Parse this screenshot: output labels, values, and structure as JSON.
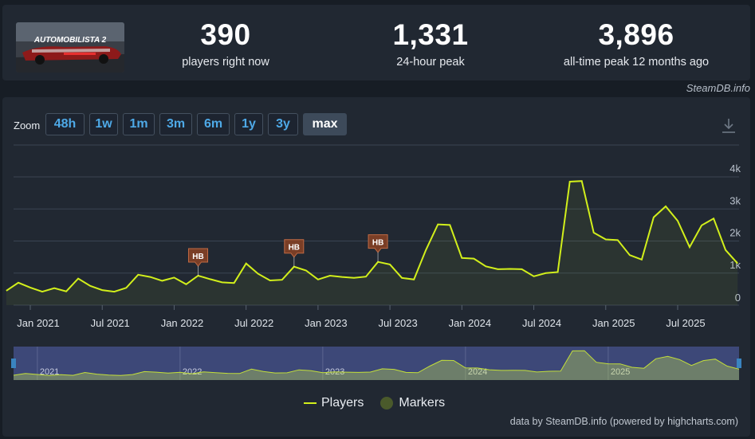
{
  "game": {
    "thumbnail_text": "AUTOMOBILISTA 2"
  },
  "stats": [
    {
      "value": "390",
      "label": "players right now"
    },
    {
      "value": "1,331",
      "label": "24-hour peak"
    },
    {
      "value": "3,896",
      "label": "all-time peak 12 months ago"
    }
  ],
  "brand": "SteamDB.info",
  "zoom": {
    "label": "Zoom",
    "buttons": [
      "48h",
      "1w",
      "1m",
      "3m",
      "6m",
      "1y",
      "3y",
      "max"
    ],
    "active": "max"
  },
  "legend": {
    "players": "Players",
    "markers": "Markers"
  },
  "credit": "data by SteamDB.info (powered by highcharts.com)",
  "colors": {
    "line": "#d2ef1b",
    "marker": "#7a3e26",
    "legend_marker": "#4a5a2b",
    "active_zoom": "#3d4a5a",
    "link": "#4ea9e7"
  },
  "chart_data": {
    "type": "line",
    "title": "",
    "xlabel": "",
    "ylabel": "",
    "ylim": [
      0,
      4000
    ],
    "y_ticks": [
      "0",
      "1k",
      "2k",
      "3k",
      "4k"
    ],
    "x_ticks": [
      "Jan 2021",
      "Jul 2021",
      "Jan 2022",
      "Jul 2022",
      "Jan 2023",
      "Jul 2023",
      "Jan 2024",
      "Jul 2024",
      "Jan 2025",
      "Jul 2025"
    ],
    "navigator_ticks": [
      "2021",
      "2022",
      "2023",
      "2024",
      "2025"
    ],
    "series": [
      {
        "name": "Players",
        "x": [
          "2020-11",
          "2020-12",
          "2021-01",
          "2021-02",
          "2021-03",
          "2021-04",
          "2021-05",
          "2021-06",
          "2021-07",
          "2021-08",
          "2021-09",
          "2021-10",
          "2021-11",
          "2021-12",
          "2022-01",
          "2022-02",
          "2022-03",
          "2022-04",
          "2022-05",
          "2022-06",
          "2022-07",
          "2022-08",
          "2022-09",
          "2022-10",
          "2022-11",
          "2022-12",
          "2023-01",
          "2023-02",
          "2023-03",
          "2023-04",
          "2023-05",
          "2023-06",
          "2023-07",
          "2023-08",
          "2023-09",
          "2023-10",
          "2023-11",
          "2023-12",
          "2024-01",
          "2024-02",
          "2024-03",
          "2024-04",
          "2024-05",
          "2024-06",
          "2024-07",
          "2024-08",
          "2024-09",
          "2024-10",
          "2024-11",
          "2024-12",
          "2025-01",
          "2025-02",
          "2025-03",
          "2025-04",
          "2025-05",
          "2025-06",
          "2025-07",
          "2025-08",
          "2025-09",
          "2025-10",
          "2025-11",
          "2025-12"
        ],
        "values": [
          450,
          700,
          550,
          420,
          530,
          430,
          830,
          600,
          470,
          420,
          540,
          950,
          880,
          760,
          860,
          650,
          920,
          810,
          710,
          690,
          1300,
          980,
          770,
          790,
          1200,
          1080,
          800,
          920,
          880,
          850,
          890,
          1350,
          1270,
          850,
          800,
          1720,
          2520,
          2500,
          1470,
          1450,
          1210,
          1120,
          1130,
          1120,
          900,
          1000,
          1030,
          3850,
          3870,
          2260,
          2050,
          2030,
          1560,
          1420,
          2740,
          3080,
          2630,
          1810,
          2490,
          2700,
          1720,
          1300
        ]
      }
    ],
    "markers": [
      {
        "label": "HB",
        "x": "2022-03"
      },
      {
        "label": "HB",
        "x": "2022-11"
      },
      {
        "label": "HB",
        "x": "2023-06"
      }
    ]
  }
}
